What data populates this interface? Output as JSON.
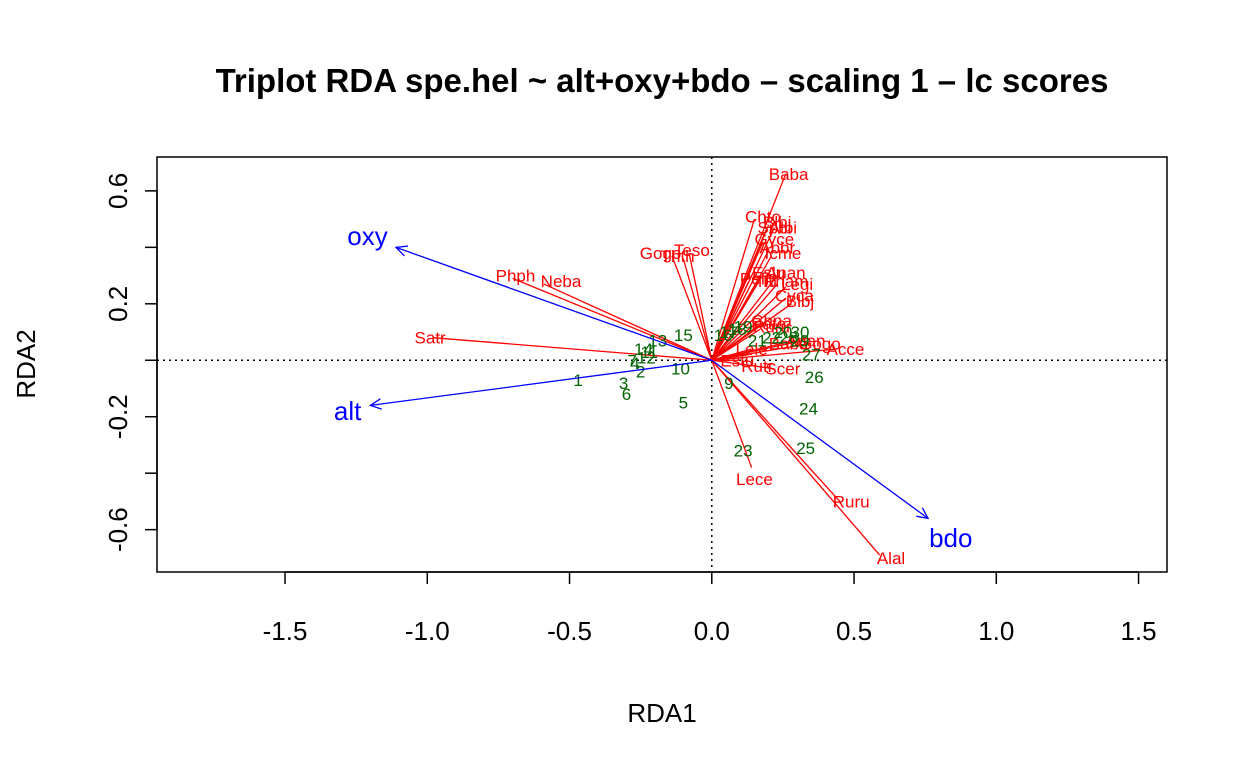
{
  "chart_data": {
    "type": "scatter",
    "title": "Triplot RDA spe.hel ~ alt+oxy+bdo – scaling 1 – lc scores",
    "xlabel": "RDA1",
    "ylabel": "RDA2",
    "xlim": [
      -1.95,
      1.6
    ],
    "ylim": [
      -0.75,
      0.72
    ],
    "xticks": [
      -1.5,
      -1.0,
      -0.5,
      0.0,
      0.5,
      1.0,
      1.5
    ],
    "yticks": [
      -0.6,
      -0.2,
      0.2,
      0.6
    ],
    "xtick_labels": [
      "-1.5",
      "-1.0",
      "-0.5",
      "0.0",
      "0.5",
      "1.0",
      "1.5"
    ],
    "ytick_labels": [
      "-0.6",
      "-0.2",
      "0.2",
      "0.6"
    ],
    "reference_lines": {
      "x": 0,
      "y": 0,
      "style": "dotted"
    },
    "colors": {
      "species": "#ff0000",
      "sites": "#006400",
      "environment": "#0000ff",
      "axes": "#000000"
    },
    "species": [
      {
        "label": "Baba",
        "x": 0.26,
        "y": 0.66,
        "lx": 0.27,
        "ly": 0.66
      },
      {
        "label": "Chto",
        "x": 0.15,
        "y": 0.5,
        "lx": 0.18,
        "ly": 0.51
      },
      {
        "label": "Blbj",
        "x": 0.2,
        "y": 0.48,
        "lx": 0.23,
        "ly": 0.49
      },
      {
        "label": "Albi",
        "x": 0.22,
        "y": 0.47,
        "lx": 0.25,
        "ly": 0.47
      },
      {
        "label": "Spbi",
        "x": 0.19,
        "y": 0.46,
        "lx": 0.22,
        "ly": 0.47
      },
      {
        "label": "Gyce",
        "x": 0.18,
        "y": 0.42,
        "lx": 0.22,
        "ly": 0.43
      },
      {
        "label": "Abbr",
        "x": 0.2,
        "y": 0.39,
        "lx": 0.23,
        "ly": 0.4
      },
      {
        "label": "Icme",
        "x": 0.21,
        "y": 0.37,
        "lx": 0.25,
        "ly": 0.38
      },
      {
        "label": "Eslu",
        "x": 0.17,
        "y": 0.29,
        "lx": 0.2,
        "ly": 0.31
      },
      {
        "label": "Pefl",
        "x": 0.13,
        "y": 0.28,
        "lx": 0.15,
        "ly": 0.29
      },
      {
        "label": "Anan",
        "x": 0.23,
        "y": 0.3,
        "lx": 0.26,
        "ly": 0.31
      },
      {
        "label": "Titi",
        "x": 0.16,
        "y": 0.27,
        "lx": 0.19,
        "ly": 0.28
      },
      {
        "label": "Rham",
        "x": 0.23,
        "y": 0.27,
        "lx": 0.26,
        "ly": 0.28
      },
      {
        "label": "Legi",
        "x": 0.26,
        "y": 0.26,
        "lx": 0.3,
        "ly": 0.27
      },
      {
        "label": "Cyca",
        "x": 0.26,
        "y": 0.22,
        "lx": 0.29,
        "ly": 0.23
      },
      {
        "label": "Blbj",
        "x": 0.28,
        "y": 0.2,
        "lx": 0.31,
        "ly": 0.21
      },
      {
        "label": "Chna",
        "x": 0.18,
        "y": 0.13,
        "lx": 0.21,
        "ly": 0.14
      },
      {
        "label": "Pato",
        "x": 0.16,
        "y": 0.12,
        "lx": 0.2,
        "ly": 0.13
      },
      {
        "label": "Ruru",
        "x": 0.17,
        "y": 0.11,
        "lx": 0.21,
        "ly": 0.12
      },
      {
        "label": "Thth",
        "x": -0.1,
        "y": 0.36,
        "lx": -0.12,
        "ly": 0.37
      },
      {
        "label": "Teso",
        "x": -0.08,
        "y": 0.38,
        "lx": -0.07,
        "ly": 0.39
      },
      {
        "label": "Gogo",
        "x": -0.14,
        "y": 0.37,
        "lx": -0.18,
        "ly": 0.38
      },
      {
        "label": "Phph",
        "x": -0.7,
        "y": 0.29,
        "lx": -0.69,
        "ly": 0.3
      },
      {
        "label": "Neba",
        "x": -0.59,
        "y": 0.27,
        "lx": -0.53,
        "ly": 0.28
      },
      {
        "label": "Satr",
        "x": -0.98,
        "y": 0.08,
        "lx": -0.99,
        "ly": 0.08
      },
      {
        "label": "Lele",
        "x": 0.14,
        "y": 0.04,
        "lx": 0.14,
        "ly": 0.04
      },
      {
        "label": "Baba",
        "x": 0.29,
        "y": 0.07,
        "lx": 0.27,
        "ly": 0.06
      },
      {
        "label": "Anan",
        "x": 0.32,
        "y": 0.07,
        "lx": 0.33,
        "ly": 0.07
      },
      {
        "label": "Gogo",
        "x": 0.35,
        "y": 0.06,
        "lx": 0.38,
        "ly": 0.06
      },
      {
        "label": "Acce",
        "x": 0.44,
        "y": 0.04,
        "lx": 0.47,
        "ly": 0.04
      },
      {
        "label": "Estu",
        "x": 0.1,
        "y": 0.0,
        "lx": 0.09,
        "ly": 0.0
      },
      {
        "label": "Rutr",
        "x": 0.13,
        "y": 0.02,
        "lx": 0.16,
        "ly": -0.02
      },
      {
        "label": "Scer",
        "x": 0.22,
        "y": -0.03,
        "lx": 0.25,
        "ly": -0.03
      },
      {
        "label": "Lece",
        "x": 0.14,
        "y": -0.38,
        "lx": 0.15,
        "ly": -0.42
      },
      {
        "label": "Ruru",
        "x": 0.45,
        "y": -0.5,
        "lx": 0.49,
        "ly": -0.5
      },
      {
        "label": "Alal",
        "x": 0.59,
        "y": -0.69,
        "lx": 0.63,
        "ly": -0.7
      }
    ],
    "sites": [
      {
        "label": "1",
        "x": -0.47,
        "y": -0.07
      },
      {
        "label": "2",
        "x": -0.25,
        "y": -0.04
      },
      {
        "label": "3",
        "x": -0.31,
        "y": -0.08
      },
      {
        "label": "4",
        "x": -0.27,
        "y": -0.01
      },
      {
        "label": "5",
        "x": -0.1,
        "y": -0.15
      },
      {
        "label": "6",
        "x": -0.3,
        "y": -0.12
      },
      {
        "label": "7",
        "x": -0.28,
        "y": 0.0
      },
      {
        "label": "9",
        "x": 0.06,
        "y": -0.08
      },
      {
        "label": "10",
        "x": -0.11,
        "y": -0.03
      },
      {
        "label": "11",
        "x": -0.22,
        "y": 0.03
      },
      {
        "label": "12",
        "x": -0.23,
        "y": 0.01
      },
      {
        "label": "13",
        "x": -0.19,
        "y": 0.07
      },
      {
        "label": "14",
        "x": -0.24,
        "y": 0.04
      },
      {
        "label": "15",
        "x": -0.1,
        "y": 0.09
      },
      {
        "label": "16",
        "x": 0.04,
        "y": 0.09
      },
      {
        "label": "17",
        "x": 0.06,
        "y": 0.1
      },
      {
        "label": "18",
        "x": 0.09,
        "y": 0.11
      },
      {
        "label": "19",
        "x": 0.11,
        "y": 0.12
      },
      {
        "label": "20",
        "x": 0.25,
        "y": 0.1
      },
      {
        "label": "21",
        "x": 0.16,
        "y": 0.07
      },
      {
        "label": "22",
        "x": 0.21,
        "y": 0.08
      },
      {
        "label": "23",
        "x": 0.11,
        "y": -0.32
      },
      {
        "label": "24",
        "x": 0.34,
        "y": -0.17
      },
      {
        "label": "25",
        "x": 0.33,
        "y": -0.31
      },
      {
        "label": "26",
        "x": 0.36,
        "y": -0.06
      },
      {
        "label": "27",
        "x": 0.35,
        "y": 0.02
      },
      {
        "label": "28",
        "x": 0.27,
        "y": 0.08
      },
      {
        "label": "29",
        "x": 0.31,
        "y": 0.07
      },
      {
        "label": "30",
        "x": 0.31,
        "y": 0.1
      }
    ],
    "environment": [
      {
        "label": "oxy",
        "x": -1.11,
        "y": 0.4,
        "lx": -1.21,
        "ly": 0.44
      },
      {
        "label": "alt",
        "x": -1.2,
        "y": -0.16,
        "lx": -1.28,
        "ly": -0.18
      },
      {
        "label": "bdo",
        "x": 0.76,
        "y": -0.56,
        "lx": 0.84,
        "ly": -0.63
      }
    ]
  }
}
